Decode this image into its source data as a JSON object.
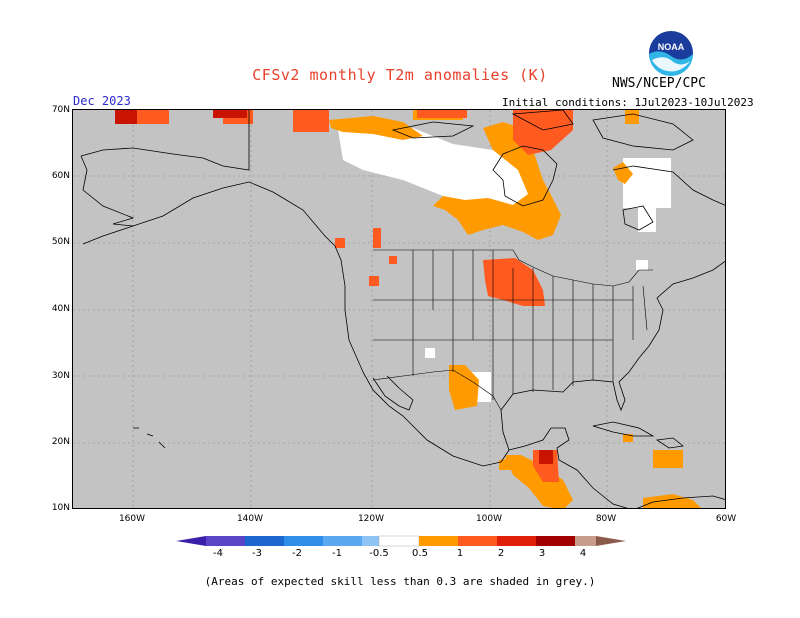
{
  "header": {
    "title": "CFSv2 monthly T2m anomalies (K)",
    "agency": "NWS/NCEP/CPC",
    "month": "Dec 2023",
    "initial_conditions": "Initial conditions: 1Jul2023-10Jul2023",
    "logo_text": "NOAA"
  },
  "map": {
    "region": "North America",
    "variable": "T2m anomaly",
    "units": "K",
    "background_color": "#c3c3c3",
    "lat_labels": [
      "70N",
      "60N",
      "50N",
      "40N",
      "30N",
      "20N",
      "10N"
    ],
    "lon_labels": [
      "160W",
      "140W",
      "120W",
      "100W",
      "80W",
      "60W"
    ],
    "gridlines": "dotted"
  },
  "colorbar": {
    "labels": [
      "-4",
      "-3",
      "-2",
      "-1",
      "-0.5",
      "0.5",
      "1",
      "2",
      "3",
      "4"
    ],
    "colors": [
      "#3b1fa8",
      "#5a45c8",
      "#1c68d0",
      "#2f8ee8",
      "#5aa9f0",
      "#8ec4f5",
      "#ffffff",
      "#ff9a00",
      "#ff5a1f",
      "#e0200a",
      "#a00000",
      "#c79c8c",
      "#8c5a4a"
    ]
  },
  "footnote": "(Areas of expected skill less than 0.3 are shaded in grey.)"
}
